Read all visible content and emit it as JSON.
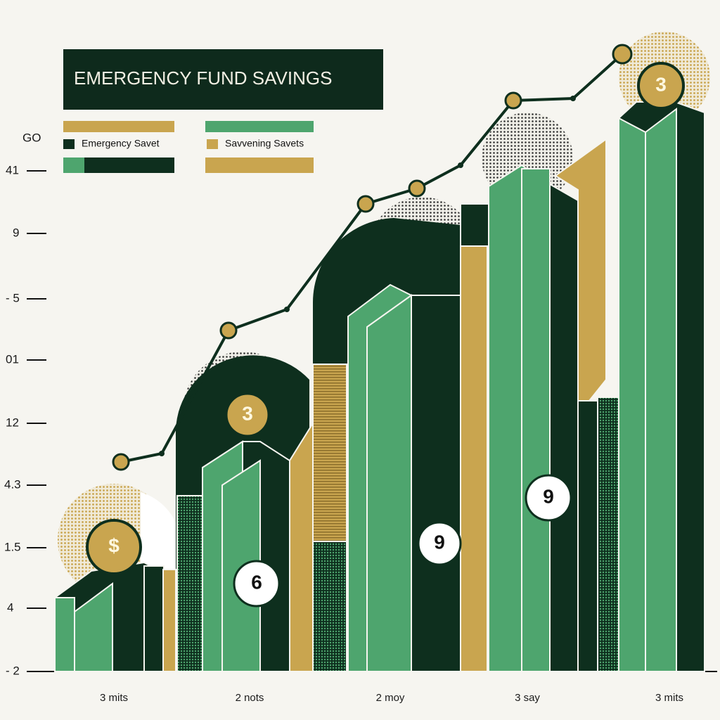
{
  "title": "EMERGENCY FUND SAVINGS",
  "legend": [
    "Emergency Savet",
    "Savvening Savets"
  ],
  "axis": {
    "labels": [
      "GO",
      "41",
      "9",
      "- 5",
      "01",
      "12",
      "4.3",
      "1.5",
      "4",
      "- 2"
    ]
  },
  "groups": [
    "3 mits",
    "2 nots",
    "2 moy",
    "3 say",
    "3 mits"
  ],
  "badges": [
    "$",
    "3",
    "6",
    "9",
    "9",
    "3"
  ]
}
